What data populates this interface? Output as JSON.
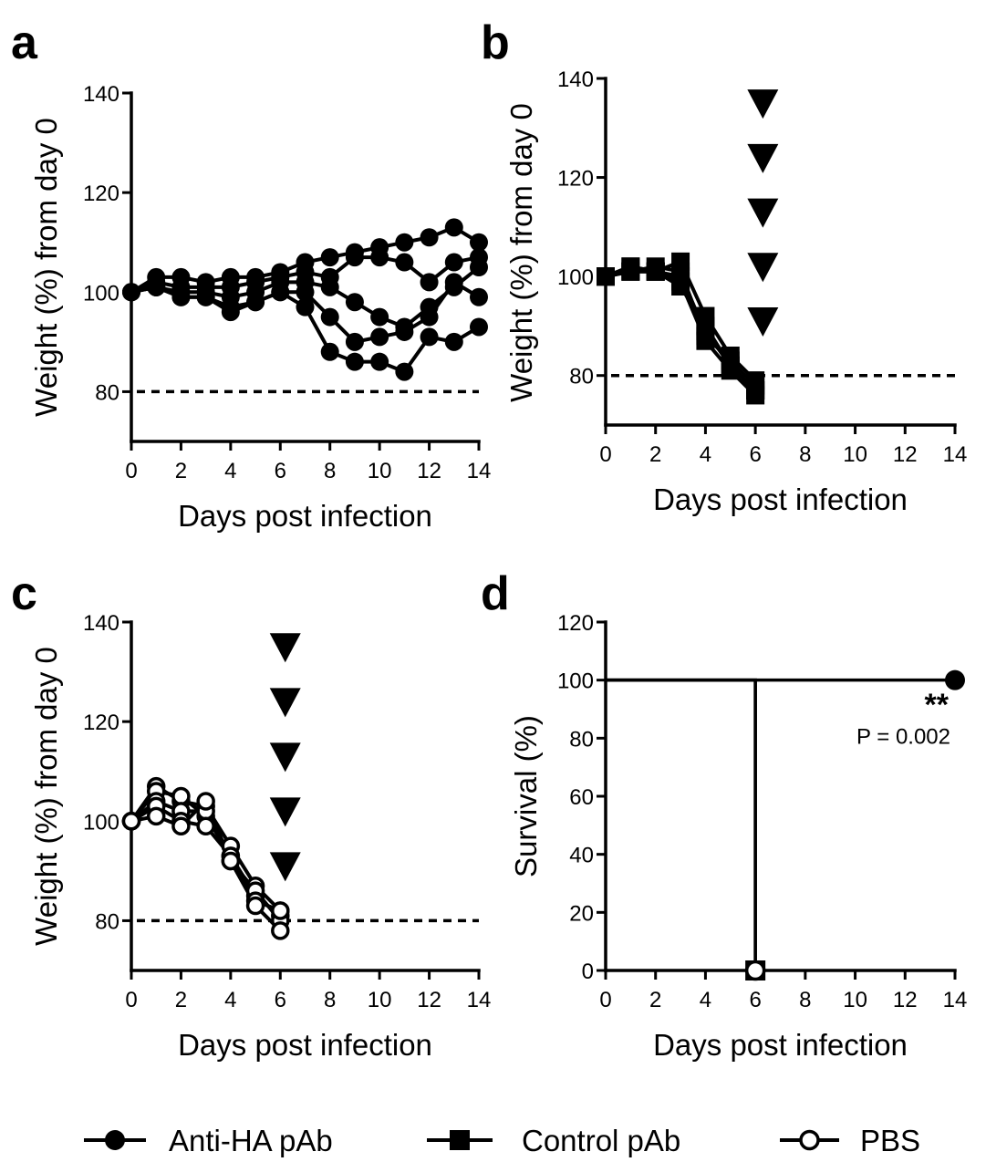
{
  "chart_data": [
    {
      "panel": "a",
      "type": "line",
      "xlabel": "Days post infection",
      "ylabel": "Weight (%) from day 0",
      "xlim": [
        0,
        14
      ],
      "ylim": [
        70,
        140
      ],
      "xticks": [
        0,
        2,
        4,
        6,
        8,
        10,
        12,
        14
      ],
      "yticks": [
        80,
        100,
        120,
        140
      ],
      "reference_line": 80,
      "marker": "filled-circle",
      "series": [
        {
          "x": [
            0,
            1,
            2,
            3,
            4,
            5,
            6,
            7,
            8,
            9,
            10,
            11,
            12,
            13,
            14
          ],
          "y": [
            100,
            103,
            103,
            102,
            103,
            103,
            104,
            106,
            107,
            108,
            109,
            110,
            111,
            113,
            110
          ]
        },
        {
          "x": [
            0,
            1,
            2,
            3,
            4,
            5,
            6,
            7,
            8,
            9,
            10,
            11,
            12,
            13,
            14
          ],
          "y": [
            100,
            102,
            101,
            101,
            101,
            102,
            103,
            104,
            103,
            107,
            107,
            106,
            102,
            106,
            107
          ]
        },
        {
          "x": [
            0,
            1,
            2,
            3,
            4,
            5,
            6,
            7,
            8,
            9,
            10,
            11,
            12,
            13,
            14
          ],
          "y": [
            100,
            101,
            100,
            100,
            99,
            100,
            102,
            102,
            101,
            98,
            95,
            93,
            97,
            101,
            105
          ]
        },
        {
          "x": [
            0,
            1,
            2,
            3,
            4,
            5,
            6,
            7,
            8,
            9,
            10,
            11,
            12,
            13,
            14
          ],
          "y": [
            100,
            101,
            99,
            99,
            97,
            98,
            100,
            100,
            95,
            90,
            91,
            92,
            95,
            102,
            99
          ]
        },
        {
          "x": [
            0,
            1,
            2,
            3,
            4,
            5,
            6,
            7,
            8,
            9,
            10,
            11,
            12,
            13,
            14
          ],
          "y": [
            100,
            101,
            99,
            99,
            96,
            98,
            100,
            97,
            88,
            86,
            86,
            84,
            91,
            90,
            93
          ]
        }
      ]
    },
    {
      "panel": "b",
      "type": "line",
      "xlabel": "Days post infection",
      "ylabel": "Weight (%) from day 0",
      "xlim": [
        0,
        14
      ],
      "ylim": [
        70,
        140
      ],
      "xticks": [
        0,
        2,
        4,
        6,
        8,
        10,
        12,
        14
      ],
      "yticks": [
        80,
        100,
        120,
        140
      ],
      "reference_line": 80,
      "marker": "filled-square",
      "death_markers": {
        "x": 6.3,
        "y": [
          135,
          124,
          113,
          102,
          91
        ]
      },
      "series": [
        {
          "x": [
            0,
            1,
            2,
            3,
            4,
            5,
            6
          ],
          "y": [
            100,
            101,
            101,
            103,
            92,
            84,
            79
          ]
        },
        {
          "x": [
            0,
            1,
            2,
            3,
            4,
            5,
            6
          ],
          "y": [
            100,
            102,
            101,
            100,
            89,
            82,
            77
          ]
        },
        {
          "x": [
            0,
            1,
            2,
            3,
            4,
            5,
            6
          ],
          "y": [
            100,
            101,
            102,
            101,
            88,
            83,
            78
          ]
        },
        {
          "x": [
            0,
            1,
            2,
            3,
            4,
            5,
            6
          ],
          "y": [
            100,
            102,
            101,
            99,
            87,
            81,
            76
          ]
        },
        {
          "x": [
            0,
            1,
            2,
            3,
            4,
            5,
            6
          ],
          "y": [
            100,
            101,
            101,
            98,
            90,
            82,
            77
          ]
        }
      ]
    },
    {
      "panel": "c",
      "type": "line",
      "xlabel": "Days post infection",
      "ylabel": "Weight (%) from day 0",
      "xlim": [
        0,
        14
      ],
      "ylim": [
        70,
        140
      ],
      "xticks": [
        0,
        2,
        4,
        6,
        8,
        10,
        12,
        14
      ],
      "yticks": [
        80,
        100,
        120,
        140
      ],
      "reference_line": 80,
      "marker": "open-circle",
      "death_markers": {
        "x": 6.2,
        "y": [
          135,
          124,
          113,
          102,
          91
        ]
      },
      "series": [
        {
          "x": [
            0,
            1,
            2,
            3,
            4,
            5,
            6
          ],
          "y": [
            100,
            107,
            104,
            103,
            95,
            87,
            82
          ]
        },
        {
          "x": [
            0,
            1,
            2,
            3,
            4,
            5,
            6
          ],
          "y": [
            100,
            106,
            105,
            101,
            93,
            85,
            81
          ]
        },
        {
          "x": [
            0,
            1,
            2,
            3,
            4,
            5,
            6
          ],
          "y": [
            100,
            104,
            102,
            102,
            92,
            86,
            80
          ]
        },
        {
          "x": [
            0,
            1,
            2,
            3,
            4,
            5,
            6
          ],
          "y": [
            100,
            103,
            100,
            99,
            93,
            84,
            82
          ]
        },
        {
          "x": [
            0,
            1,
            2,
            3,
            4,
            5,
            6
          ],
          "y": [
            100,
            101,
            99,
            104,
            92,
            83,
            78
          ]
        }
      ]
    },
    {
      "panel": "d",
      "type": "line",
      "xlabel": "Days post infection",
      "ylabel": "Survival (%)",
      "xlim": [
        0,
        14
      ],
      "ylim": [
        0,
        120
      ],
      "xticks": [
        0,
        2,
        4,
        6,
        8,
        10,
        12,
        14
      ],
      "yticks": [
        0,
        20,
        40,
        60,
        80,
        100,
        120
      ],
      "series": [
        {
          "legend_index": 0,
          "marker": "filled-circle",
          "step_x": [
            0,
            14
          ],
          "step_y": [
            100,
            100
          ],
          "end_point": [
            14,
            100
          ]
        },
        {
          "legend_index": 1,
          "marker": "filled-square",
          "step_x": [
            0,
            6,
            6
          ],
          "step_y": [
            100,
            100,
            0
          ],
          "end_point": [
            6,
            0
          ]
        },
        {
          "legend_index": 2,
          "marker": "open-circle",
          "step_x": [
            0,
            6,
            6
          ],
          "step_y": [
            100,
            100,
            0
          ],
          "end_point": [
            6,
            0
          ]
        }
      ],
      "annotation": {
        "stars": "**",
        "pvalue": "P = 0.002"
      }
    }
  ],
  "legend": [
    {
      "label": "Anti-HA pAb",
      "marker": "filled-circle"
    },
    {
      "label": "Control pAb",
      "marker": "filled-square"
    },
    {
      "label": "PBS",
      "marker": "open-circle"
    }
  ]
}
